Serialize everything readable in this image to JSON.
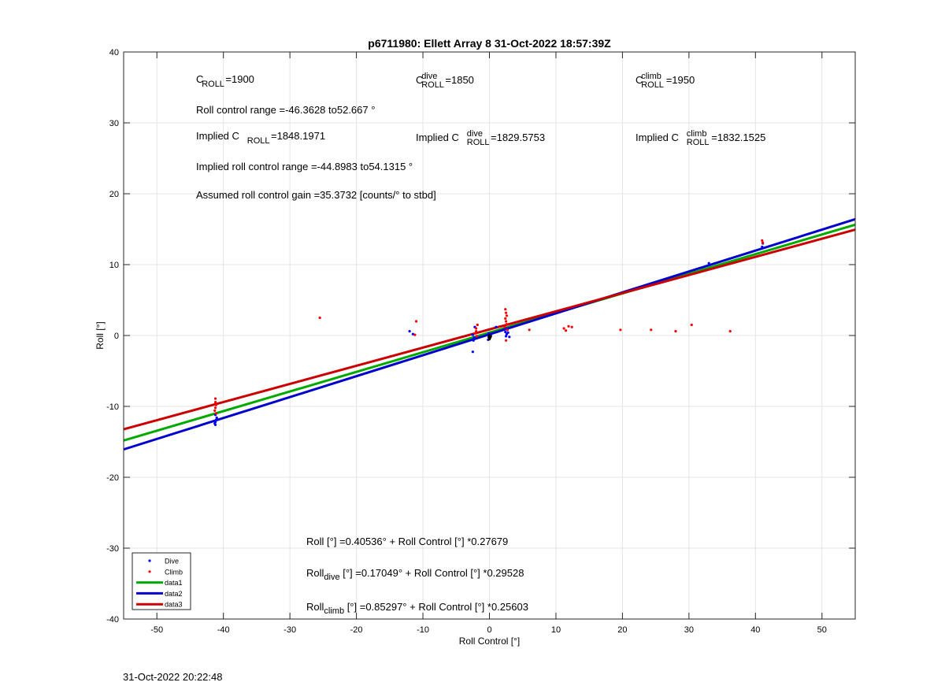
{
  "footer": {
    "timestamp": "31-Oct-2022 20:22:48"
  },
  "chart_data": {
    "type": "scatter",
    "title": "p6711980: Ellett Array 8 31-Oct-2022 18:57:39Z",
    "xlabel": "Roll Control [°]",
    "ylabel": "Roll [°]",
    "xlim": [
      -55,
      55
    ],
    "ylim": [
      -40,
      40
    ],
    "xticks": [
      -50,
      -40,
      -30,
      -20,
      -10,
      0,
      10,
      20,
      30,
      40,
      50
    ],
    "yticks": [
      -40,
      -30,
      -20,
      -10,
      0,
      10,
      20,
      30,
      40
    ],
    "grid": true,
    "legend_position": "bottom-left",
    "annotations": {
      "c_roll": {
        "base": "C",
        "sub": "ROLL",
        "value": "=1900"
      },
      "c_roll_dive": {
        "base": "C",
        "sup": "dive",
        "sub": "ROLL",
        "value": " =1850"
      },
      "c_roll_climb": {
        "base": "C",
        "sup": "climb",
        "sub": "ROLL",
        "value": " =1950"
      },
      "roll_control_range": "Roll control range =-46.3628 to52.667 °",
      "implied_c_roll": {
        "prefix": "Implied C",
        "sub": "ROLL",
        "value": " =1848.1971"
      },
      "implied_c_roll_dive": {
        "prefix": "Implied C",
        "sup": "dive",
        "sub": "ROLL",
        "value": " =1829.5753"
      },
      "implied_c_roll_climb": {
        "prefix": "Implied C",
        "sup": "climb",
        "sub": "ROLL",
        "value": " =1832.1525"
      },
      "implied_range": "Implied roll control range =-44.8983 to54.1315 °",
      "gain": "Assumed roll control gain =35.3732 [counts/° to stbd]",
      "fit_all": {
        "prefix": "Roll",
        "sub": "",
        "rest": " [°] =0.40536° + Roll Control [°] *0.27679"
      },
      "fit_dive": {
        "prefix": "Roll",
        "sub": "dive",
        "rest": " [°] =0.17049° + Roll Control [°] *0.29528"
      },
      "fit_climb": {
        "prefix": "Roll",
        "sub": "climb",
        "rest": " [°] =0.85297° + Roll Control [°] *0.25603"
      }
    },
    "series": [
      {
        "name": "Dive",
        "kind": "points",
        "color": "#0000ff",
        "points": [
          [
            -41.2,
            -12.6
          ],
          [
            -41.2,
            -12.2
          ],
          [
            -41.1,
            -11.9
          ],
          [
            -41.3,
            -12.4
          ],
          [
            -41.0,
            -11.6
          ],
          [
            -41.2,
            -11.2
          ],
          [
            -12,
            0.6
          ],
          [
            -11.5,
            0.2
          ],
          [
            -2.5,
            -2.3
          ],
          [
            -2.4,
            -0.7
          ],
          [
            -2.3,
            -0.3
          ],
          [
            -2.2,
            1.2
          ],
          [
            -2.5,
            0.1
          ],
          [
            -0.2,
            -0.6
          ],
          [
            0,
            -0.3
          ],
          [
            0.2,
            0.1
          ],
          [
            -0.1,
            0.3
          ],
          [
            1,
            1.2
          ],
          [
            2.4,
            0.5
          ],
          [
            2.5,
            -0.1
          ],
          [
            2.6,
            0.2
          ],
          [
            2.7,
            0.8
          ],
          [
            2.8,
            0.4
          ],
          [
            3.0,
            -0.2
          ],
          [
            2.5,
            1.0
          ],
          [
            33,
            10.2
          ],
          [
            41,
            12.5
          ],
          [
            41.1,
            13.0
          ]
        ]
      },
      {
        "name": "Climb",
        "kind": "points",
        "color": "#ff0000",
        "points": [
          [
            -41.2,
            -8.9
          ],
          [
            -41.2,
            -9.4
          ],
          [
            -41.1,
            -9.8
          ],
          [
            -41.2,
            -10.2
          ],
          [
            -41.3,
            -10.6
          ],
          [
            -41.1,
            -11.0
          ],
          [
            -25.5,
            2.5
          ],
          [
            -11,
            2.0
          ],
          [
            -11.2,
            0.1
          ],
          [
            -2.0,
            0.6
          ],
          [
            -2.0,
            1.0
          ],
          [
            -1.8,
            1.5
          ],
          [
            -2.2,
            0.3
          ],
          [
            -1.9,
            -0.1
          ],
          [
            2.4,
            3.7
          ],
          [
            2.5,
            3.2
          ],
          [
            2.6,
            2.8
          ],
          [
            2.4,
            2.4
          ],
          [
            2.5,
            2.0
          ],
          [
            2.6,
            1.6
          ],
          [
            2.3,
            1.2
          ],
          [
            2.7,
            0.8
          ],
          [
            2.5,
            -0.7
          ],
          [
            6.0,
            0.8
          ],
          [
            11.2,
            1.0
          ],
          [
            11.5,
            0.7
          ],
          [
            11.9,
            1.3
          ],
          [
            12.4,
            1.2
          ],
          [
            19.7,
            0.8
          ],
          [
            24.3,
            0.8
          ],
          [
            28,
            0.6
          ],
          [
            30.4,
            1.5
          ],
          [
            36.2,
            0.6
          ],
          [
            41,
            13.4
          ],
          [
            41.1,
            13.1
          ]
        ]
      },
      {
        "name": "data1",
        "kind": "line",
        "color": "#00aa00",
        "intercept": 0.40536,
        "slope": 0.27679
      },
      {
        "name": "data2",
        "kind": "line",
        "color": "#0000cc",
        "intercept": 0.17049,
        "slope": 0.29528
      },
      {
        "name": "data3",
        "kind": "line",
        "color": "#cc0000",
        "intercept": 0.85297,
        "slope": 0.25603
      }
    ],
    "marker_black_points": [
      [
        0,
        0
      ],
      [
        0.1,
        -0.3
      ],
      [
        -0.1,
        -0.2
      ],
      [
        0,
        -0.5
      ],
      [
        0.2,
        -0.1
      ]
    ]
  }
}
